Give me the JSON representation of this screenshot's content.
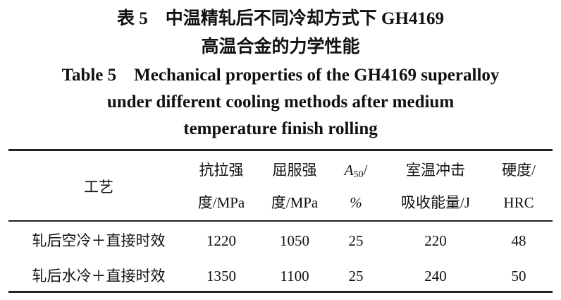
{
  "caption": {
    "cn_line1": "表 5　中温精轧后不同冷却方式下 GH4169",
    "cn_line2": "高温合金的力学性能",
    "en_line1": "Table 5　Mechanical properties of the GH4169 superalloy",
    "en_line2": "under different cooling methods after medium",
    "en_line3": "temperature finish rolling"
  },
  "table": {
    "headers": [
      {
        "line1": "工艺",
        "line2": ""
      },
      {
        "line1": "抗拉强",
        "line2": "度/MPa"
      },
      {
        "line1": "屈服强",
        "line2": "度/MPa"
      },
      {
        "line1_sym": "A",
        "line1_sub": "50",
        "line1_tail": "/",
        "line2": "%"
      },
      {
        "line1": "室温冲击",
        "line2": "吸收能量/J"
      },
      {
        "line1": "硬度/",
        "line2": "HRC"
      }
    ],
    "rows": [
      [
        "轧后空冷＋直接时效",
        "1220",
        "1050",
        "25",
        "220",
        "48"
      ],
      [
        "轧后水冷＋直接时效",
        "1350",
        "1100",
        "25",
        "240",
        "50"
      ]
    ]
  }
}
